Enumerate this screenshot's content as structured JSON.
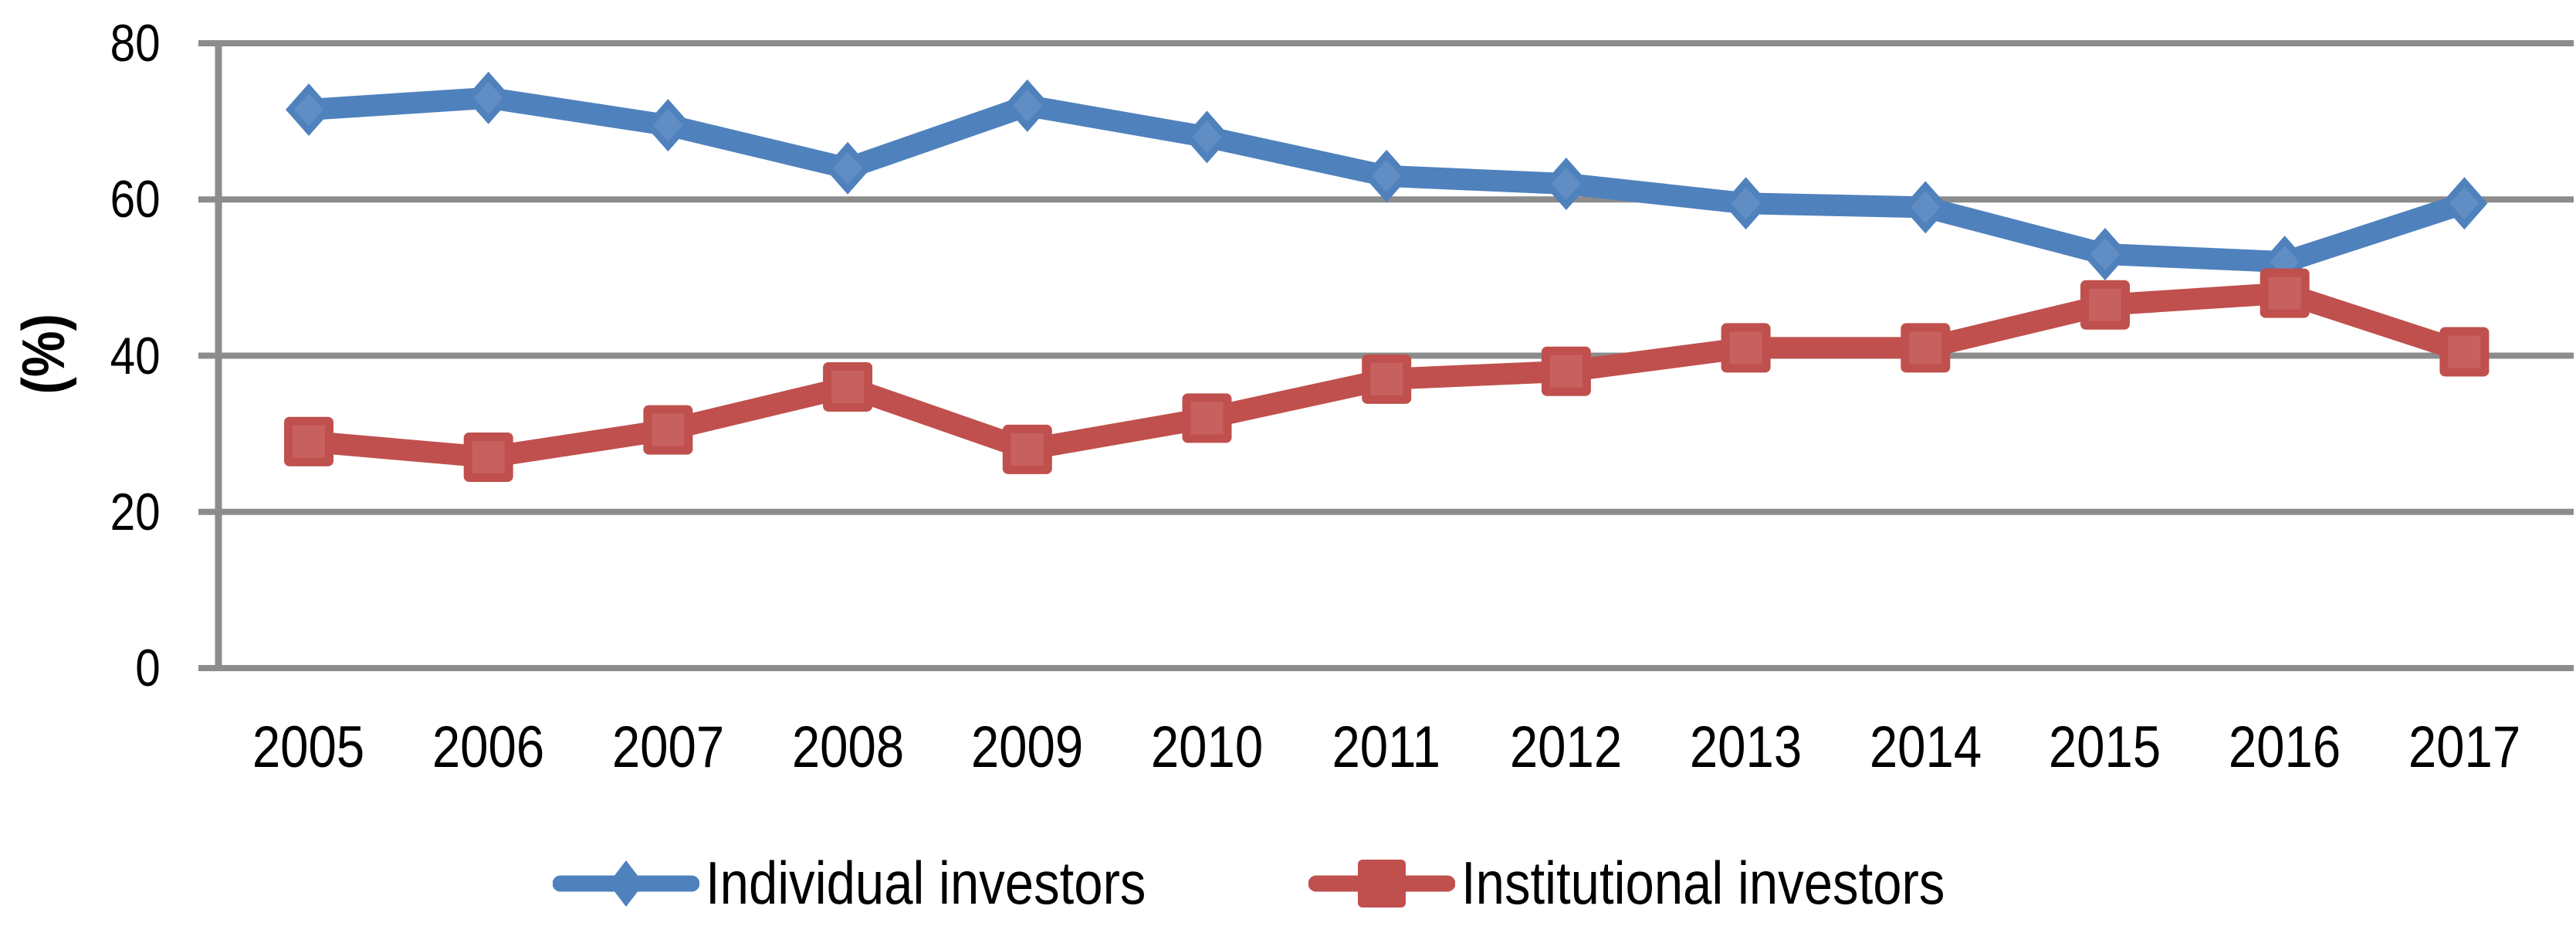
{
  "chart_data": {
    "type": "line",
    "title": "",
    "categories": [
      "2005",
      "2006",
      "2007",
      "2008",
      "2009",
      "2010",
      "2011",
      "2012",
      "2013",
      "2014",
      "2015",
      "2016",
      "2017"
    ],
    "series": [
      {
        "name": "Individual investors",
        "color": "#4F81BD",
        "marker": "diamond",
        "values": [
          71.5,
          73,
          69.5,
          64,
          72,
          68,
          63,
          62,
          59.5,
          59,
          53,
          52,
          59.5
        ]
      },
      {
        "name": "Institutional investors",
        "color": "#C0504D",
        "marker": "square",
        "values": [
          29,
          27,
          30.5,
          36,
          28,
          32,
          37,
          38,
          41,
          41,
          46.5,
          48,
          40.5
        ]
      }
    ],
    "xlabel": "",
    "ylabel": "(%)",
    "ylim": [
      0,
      80
    ],
    "yticks": [
      0,
      20,
      40,
      60,
      80
    ],
    "grid": "horizontal-gridlines",
    "gridline_color": "#8C8C8C",
    "axis_color": "#8C8C8C",
    "text_color": "#000000",
    "background": "#FFFFFF",
    "legend_position": "bottom"
  }
}
